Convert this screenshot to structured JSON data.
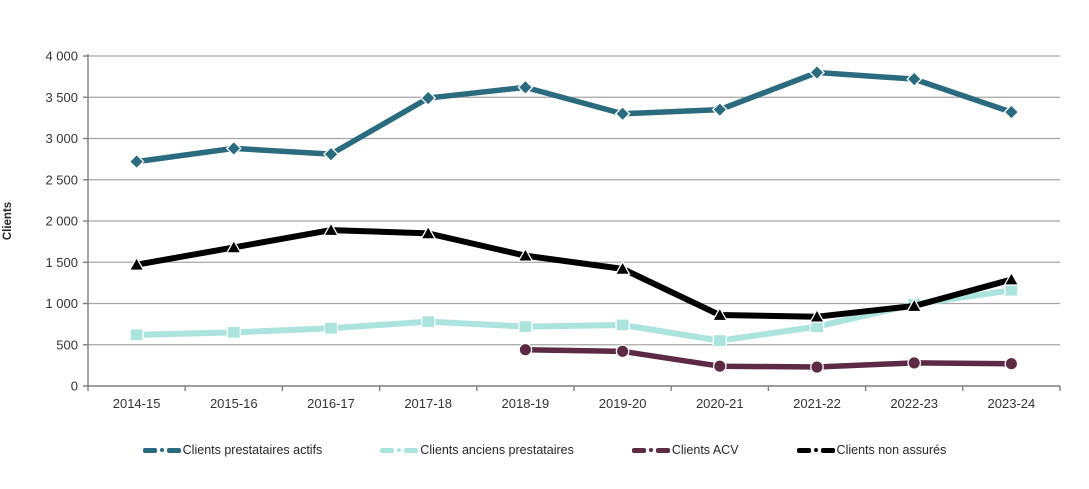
{
  "chart_data": {
    "type": "line",
    "title": "",
    "xlabel": "",
    "ylabel": "Clients",
    "ylim": [
      0,
      4000
    ],
    "ytick_interval": 500,
    "yticks": [
      {
        "value": 0,
        "label": "0"
      },
      {
        "value": 500,
        "label": "500"
      },
      {
        "value": 1000,
        "label": "1 000"
      },
      {
        "value": 1500,
        "label": "1 500"
      },
      {
        "value": 2000,
        "label": "2 000"
      },
      {
        "value": 2500,
        "label": "2 500"
      },
      {
        "value": 3000,
        "label": "3 000"
      },
      {
        "value": 3500,
        "label": "3 500"
      },
      {
        "value": 4000,
        "label": "4 000"
      }
    ],
    "categories": [
      "2014-15",
      "2015-16",
      "2016-17",
      "2017-18",
      "2018-19",
      "2019-20",
      "2020-21",
      "2021-22",
      "2022-23",
      "2023-24"
    ],
    "grid": "horizontal",
    "legend_position": "bottom",
    "series": [
      {
        "name": "Clients prestataires actifs",
        "color": "#2A6B80",
        "marker": "diamond",
        "line_width": 5.5,
        "values": [
          2720,
          2880,
          2810,
          3490,
          3620,
          3300,
          3350,
          3800,
          3720,
          3320
        ]
      },
      {
        "name": "Clients anciens prestataires",
        "color": "#ABE4DD",
        "marker": "square",
        "line_width": 6,
        "values": [
          620,
          650,
          700,
          780,
          720,
          740,
          550,
          720,
          990,
          1160
        ]
      },
      {
        "name": "Clients ACV",
        "color": "#5D2A43",
        "marker": "circle",
        "line_width": 5.5,
        "values": [
          null,
          null,
          null,
          null,
          440,
          420,
          240,
          230,
          280,
          270
        ]
      },
      {
        "name": "Clients non assurés",
        "color": "#000000",
        "marker": "triangle",
        "line_width": 6,
        "values": [
          1470,
          1680,
          1890,
          1850,
          1580,
          1420,
          860,
          840,
          970,
          1290
        ]
      }
    ]
  },
  "style": {
    "grid_color": "#A6A6A6",
    "axis_color": "#7F7F7F",
    "tick_label_color": "#333333"
  }
}
